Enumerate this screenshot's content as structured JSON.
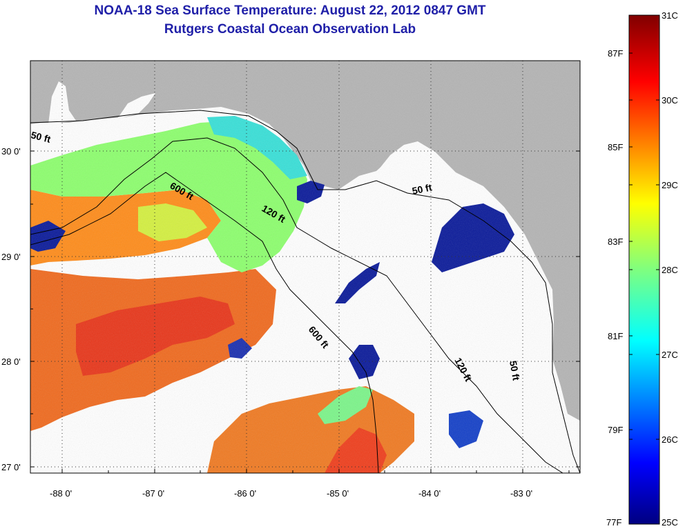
{
  "title": {
    "line1": "NOAA-18 Sea Surface Temperature:  August 22, 2012 0847 GMT",
    "line2": "Rutgers Coastal Ocean Observation Lab"
  },
  "axes": {
    "lon_labels": [
      "-88 0'",
      "-87 0'",
      "-86 0'",
      "-85 0'",
      "-84 0'",
      "-83 0'"
    ],
    "lat_labels": [
      "30 0'",
      "29 0'",
      "28 0'",
      "27 0'"
    ]
  },
  "contours": {
    "label_50": "50 ft",
    "label_120": "120 ft",
    "label_600": "600 ft"
  },
  "colorbar": {
    "celsius": [
      "31C",
      "30C",
      "29C",
      "28C",
      "27C",
      "26C",
      "25C"
    ],
    "fahrenheit": [
      "87F",
      "85F",
      "83F",
      "81F",
      "79F",
      "77F"
    ]
  },
  "colors": {
    "land": "#b4b4b4",
    "nodata": "#ffffff",
    "title": "#1f1fa8"
  }
}
